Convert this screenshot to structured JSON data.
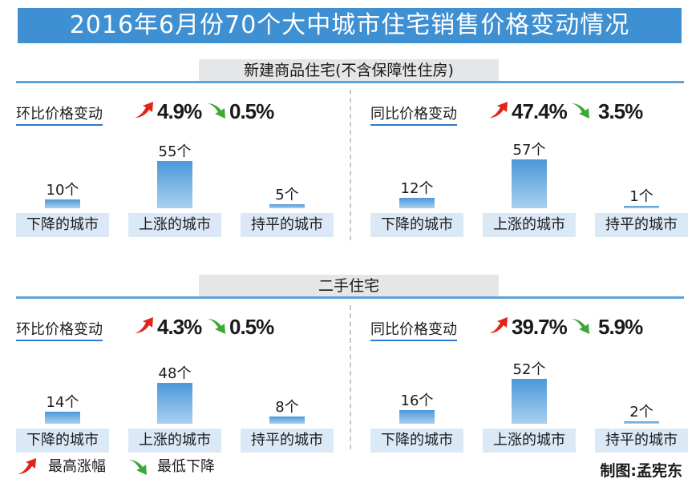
{
  "title": "2016年6月份70个大中城市住宅销售价格变动情况",
  "sections": [
    {
      "heading": "新建商品住宅(不含保障性住房)",
      "panels": [
        {
          "label": "环比价格变动",
          "max_rise": "4.9%",
          "max_fall": "0.5%"
        },
        {
          "label": "同比价格变动",
          "max_rise": "47.4%",
          "max_fall": "3.5%"
        }
      ]
    },
    {
      "heading": "二手住宅",
      "panels": [
        {
          "label": "环比价格变动",
          "max_rise": "4.3%",
          "max_fall": "0.5%"
        },
        {
          "label": "同比价格变动",
          "max_rise": "39.7%",
          "max_fall": "5.9%"
        }
      ]
    }
  ],
  "legend": {
    "rise": "最高涨幅",
    "fall": "最低下降"
  },
  "credit": "制图:孟宪东",
  "colors": {
    "rise_arrow": "#e2231a",
    "fall_arrow": "#3aa935",
    "bar_top": "#4b98d9",
    "bar_bottom": "#a9d0f0",
    "accent": "#3f8fd3"
  },
  "chart_data": [
    {
      "type": "bar",
      "title": "",
      "categories": [
        "下降的城市",
        "上涨的城市",
        "持平的城市"
      ],
      "values": [
        10,
        55,
        5
      ],
      "value_labels": [
        "10个",
        "55个",
        "5个"
      ],
      "ylim": [
        0,
        60
      ]
    },
    {
      "type": "bar",
      "title": "",
      "categories": [
        "下降的城市",
        "上涨的城市",
        "持平的城市"
      ],
      "values": [
        12,
        57,
        1
      ],
      "value_labels": [
        "12个",
        "57个",
        "1个"
      ],
      "ylim": [
        0,
        60
      ]
    },
    {
      "type": "bar",
      "title": "",
      "categories": [
        "下降的城市",
        "上涨的城市",
        "持平的城市"
      ],
      "values": [
        14,
        48,
        8
      ],
      "value_labels": [
        "14个",
        "48个",
        "8个"
      ],
      "ylim": [
        0,
        60
      ]
    },
    {
      "type": "bar",
      "title": "",
      "categories": [
        "下降的城市",
        "上涨的城市",
        "持平的城市"
      ],
      "values": [
        16,
        52,
        2
      ],
      "value_labels": [
        "16个",
        "52个",
        "2个"
      ],
      "ylim": [
        0,
        60
      ]
    }
  ]
}
